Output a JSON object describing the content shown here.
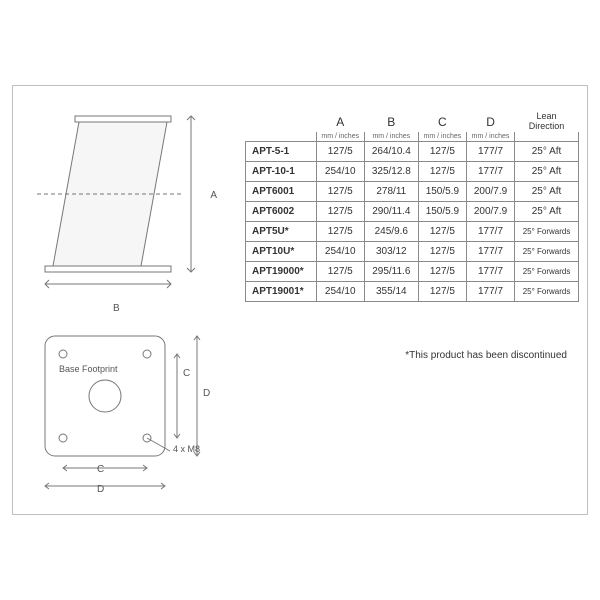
{
  "diagram": {
    "dim_a": "A",
    "dim_b": "B",
    "base_label": "Base Footprint",
    "dim_c": "C",
    "dim_d": "D",
    "bolt_note": "4 x M8"
  },
  "table": {
    "columns": [
      "A",
      "B",
      "C",
      "D",
      "Lean\nDirection"
    ],
    "unit": "mm / inches",
    "rows": [
      {
        "model": "APT-5-1",
        "a": "127/5",
        "b": "264/10.4",
        "c": "127/5",
        "d": "177/7",
        "lean": "25° Aft"
      },
      {
        "model": "APT-10-1",
        "a": "254/10",
        "b": "325/12.8",
        "c": "127/5",
        "d": "177/7",
        "lean": "25° Aft"
      },
      {
        "model": "APT6001",
        "a": "127/5",
        "b": "278/11",
        "c": "150/5.9",
        "d": "200/7.9",
        "lean": "25° Aft"
      },
      {
        "model": "APT6002",
        "a": "127/5",
        "b": "290/11.4",
        "c": "150/5.9",
        "d": "200/7.9",
        "lean": "25° Aft"
      },
      {
        "model": "APT5U*",
        "a": "127/5",
        "b": "245/9.6",
        "c": "127/5",
        "d": "177/7",
        "lean": "25° Forwards"
      },
      {
        "model": "APT10U*",
        "a": "254/10",
        "b": "303/12",
        "c": "127/5",
        "d": "177/7",
        "lean": "25° Forwards"
      },
      {
        "model": "APT19000*",
        "a": "127/5",
        "b": "295/11.6",
        "c": "127/5",
        "d": "177/7",
        "lean": "25° Forwards"
      },
      {
        "model": "APT19001*",
        "a": "254/10",
        "b": "355/14",
        "c": "127/5",
        "d": "177/7",
        "lean": "25° Forwards"
      }
    ],
    "footnote": "*This product has been discontinued"
  },
  "style": {
    "border_color": "#bfbfbf",
    "cell_border": "#8a8a8a",
    "text_color": "#333333",
    "bg": "#ffffff",
    "diagram_stroke": "#777777"
  }
}
